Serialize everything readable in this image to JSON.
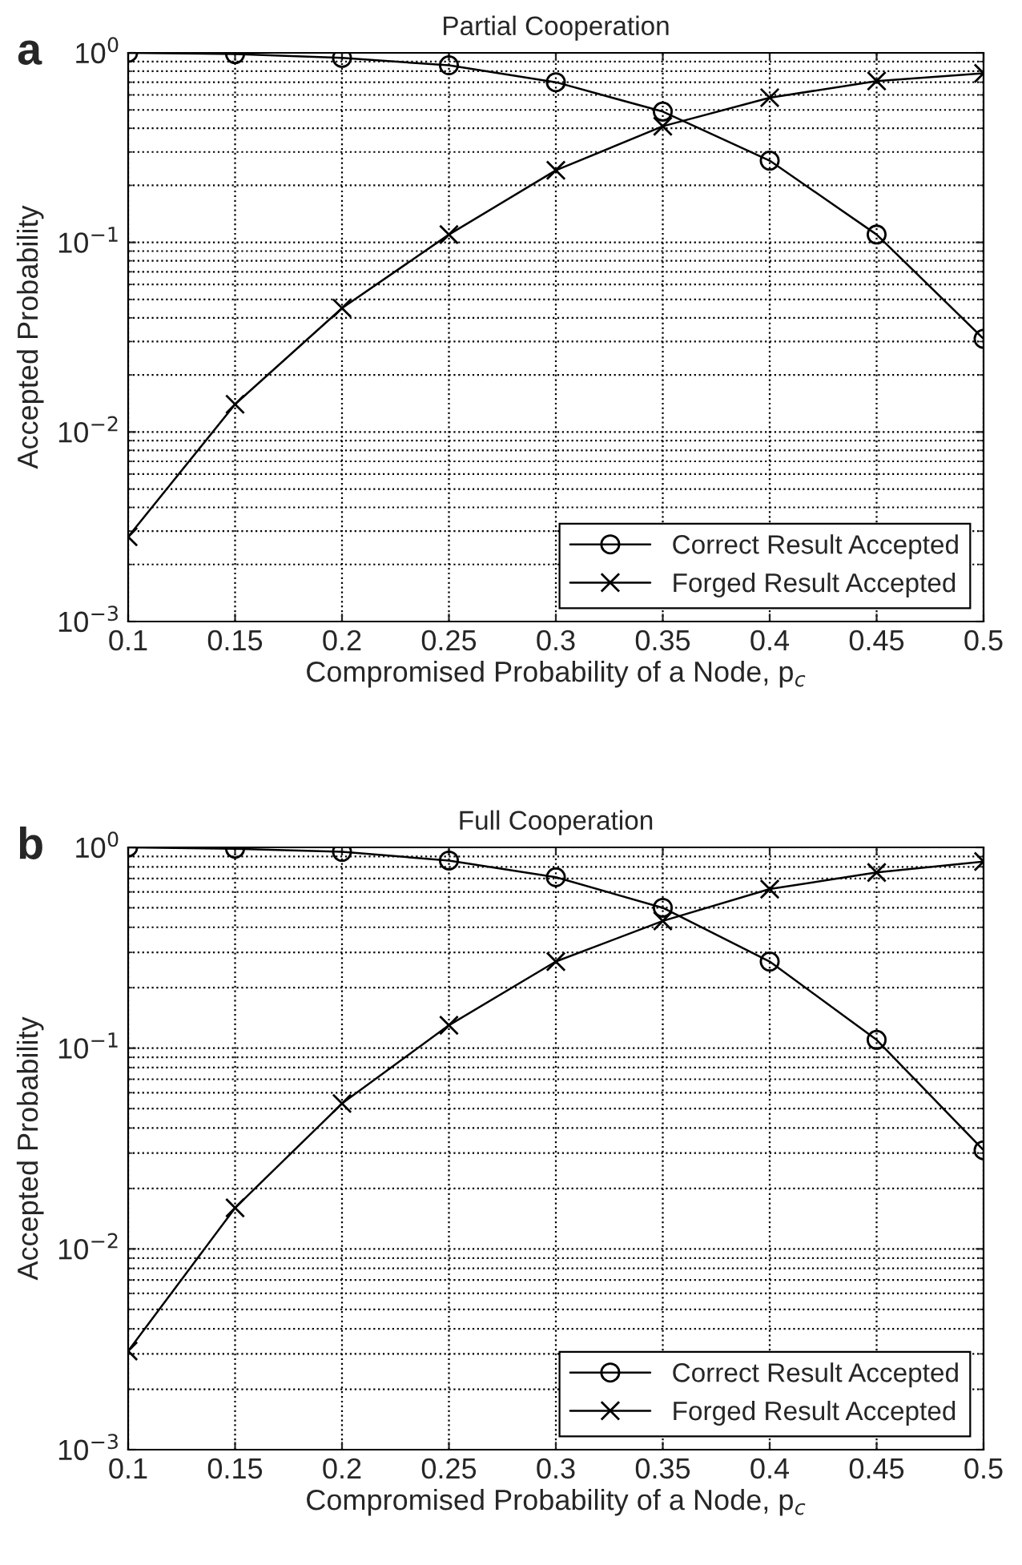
{
  "chart_data": [
    {
      "type": "line",
      "title": "Partial Cooperation",
      "xlabel": "Compromised Probability of a Node, p$_{c}$",
      "ylabel": "Accepted Probability",
      "annotations": [
        "a"
      ],
      "x": [
        0.1,
        0.15,
        0.2,
        0.25,
        0.3,
        0.35,
        0.4,
        0.45,
        0.5
      ],
      "series": [
        {
          "name": "Correct Result Accepted",
          "color": "#000000",
          "marker": "circle",
          "values": [
            1.0,
            0.985,
            0.94,
            0.86,
            0.7,
            0.49,
            0.27,
            0.11,
            0.031
          ]
        },
        {
          "name": "Forged Result Accepted",
          "color": "#000000",
          "marker": "cross",
          "values": [
            0.0028,
            0.014,
            0.045,
            0.11,
            0.24,
            0.41,
            0.58,
            0.71,
            0.78
          ]
        }
      ],
      "log": "y",
      "xlim": [
        0.1,
        0.5
      ],
      "ylim": [
        0.001,
        1
      ],
      "xticks": [
        0.1,
        0.15,
        0.2,
        0.25,
        0.3,
        0.35,
        0.4,
        0.45,
        0.5
      ],
      "yticks": [
        {
          "value": 0.001,
          "label": "10$^{−3}$"
        },
        {
          "value": 0.01,
          "label": "10$^{−2}$"
        },
        {
          "value": 0.1,
          "label": "10$^{−1}$"
        },
        {
          "value": 1,
          "label": "10$^{0}$"
        }
      ],
      "grid": true,
      "legend": "bottom right",
      "line_style": "solid"
    },
    {
      "type": "line",
      "title": "Full Cooperation",
      "xlabel": "Compromised Probability of a Node, p$_{c}$",
      "ylabel": "Accepted Probability",
      "annotations": [
        "b"
      ],
      "x": [
        0.1,
        0.15,
        0.2,
        0.25,
        0.3,
        0.35,
        0.4,
        0.45,
        0.5
      ],
      "series": [
        {
          "name": "Correct Result Accepted",
          "color": "#000000",
          "marker": "circle",
          "values": [
            1.0,
            0.985,
            0.95,
            0.86,
            0.71,
            0.5,
            0.27,
            0.11,
            0.031
          ]
        },
        {
          "name": "Forged Result Accepted",
          "color": "#000000",
          "marker": "cross",
          "values": [
            0.0031,
            0.016,
            0.053,
            0.13,
            0.27,
            0.43,
            0.62,
            0.75,
            0.85
          ]
        }
      ],
      "log": "y",
      "xlim": [
        0.1,
        0.5
      ],
      "ylim": [
        0.001,
        1
      ],
      "xticks": [
        0.1,
        0.15,
        0.2,
        0.25,
        0.3,
        0.35,
        0.4,
        0.45,
        0.5
      ],
      "yticks": [
        {
          "value": 0.001,
          "label": "10$^{−3}$"
        },
        {
          "value": 0.01,
          "label": "10$^{−2}$"
        },
        {
          "value": 0.1,
          "label": "10$^{−1}$"
        },
        {
          "value": 1,
          "label": "10$^{0}$"
        }
      ],
      "grid": true,
      "legend": "bottom right",
      "line_style": "solid"
    }
  ]
}
